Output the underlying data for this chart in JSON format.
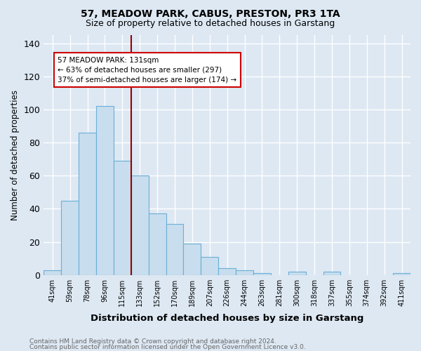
{
  "title": "57, MEADOW PARK, CABUS, PRESTON, PR3 1TA",
  "subtitle": "Size of property relative to detached houses in Garstang",
  "xlabel": "Distribution of detached houses by size in Garstang",
  "ylabel": "Number of detached properties",
  "categories": [
    "41sqm",
    "59sqm",
    "78sqm",
    "96sqm",
    "115sqm",
    "133sqm",
    "152sqm",
    "170sqm",
    "189sqm",
    "207sqm",
    "226sqm",
    "244sqm",
    "263sqm",
    "281sqm",
    "300sqm",
    "318sqm",
    "337sqm",
    "355sqm",
    "374sqm",
    "392sqm",
    "411sqm"
  ],
  "values": [
    3,
    45,
    86,
    102,
    69,
    60,
    37,
    31,
    19,
    11,
    4,
    3,
    1,
    0,
    2,
    0,
    2,
    0,
    0,
    0,
    1
  ],
  "bar_color": "#c8dded",
  "bar_edge_color": "#6aafd6",
  "vline_x_idx": 5,
  "vline_color": "#990000",
  "annotation_text": "57 MEADOW PARK: 131sqm\n← 63% of detached houses are smaller (297)\n37% of semi-detached houses are larger (174) →",
  "annotation_box_color": "white",
  "annotation_box_edge": "#cc0000",
  "ylim": [
    0,
    145
  ],
  "footer1": "Contains HM Land Registry data © Crown copyright and database right 2024.",
  "footer2": "Contains public sector information licensed under the Open Government Licence v3.0.",
  "background_color": "#dde8f3",
  "plot_background": "#dde8f3",
  "title_fontsize": 10,
  "subtitle_fontsize": 9,
  "tick_fontsize": 7,
  "ylabel_fontsize": 8.5,
  "xlabel_fontsize": 9.5,
  "footer_fontsize": 6.5,
  "footer_color": "#666666"
}
